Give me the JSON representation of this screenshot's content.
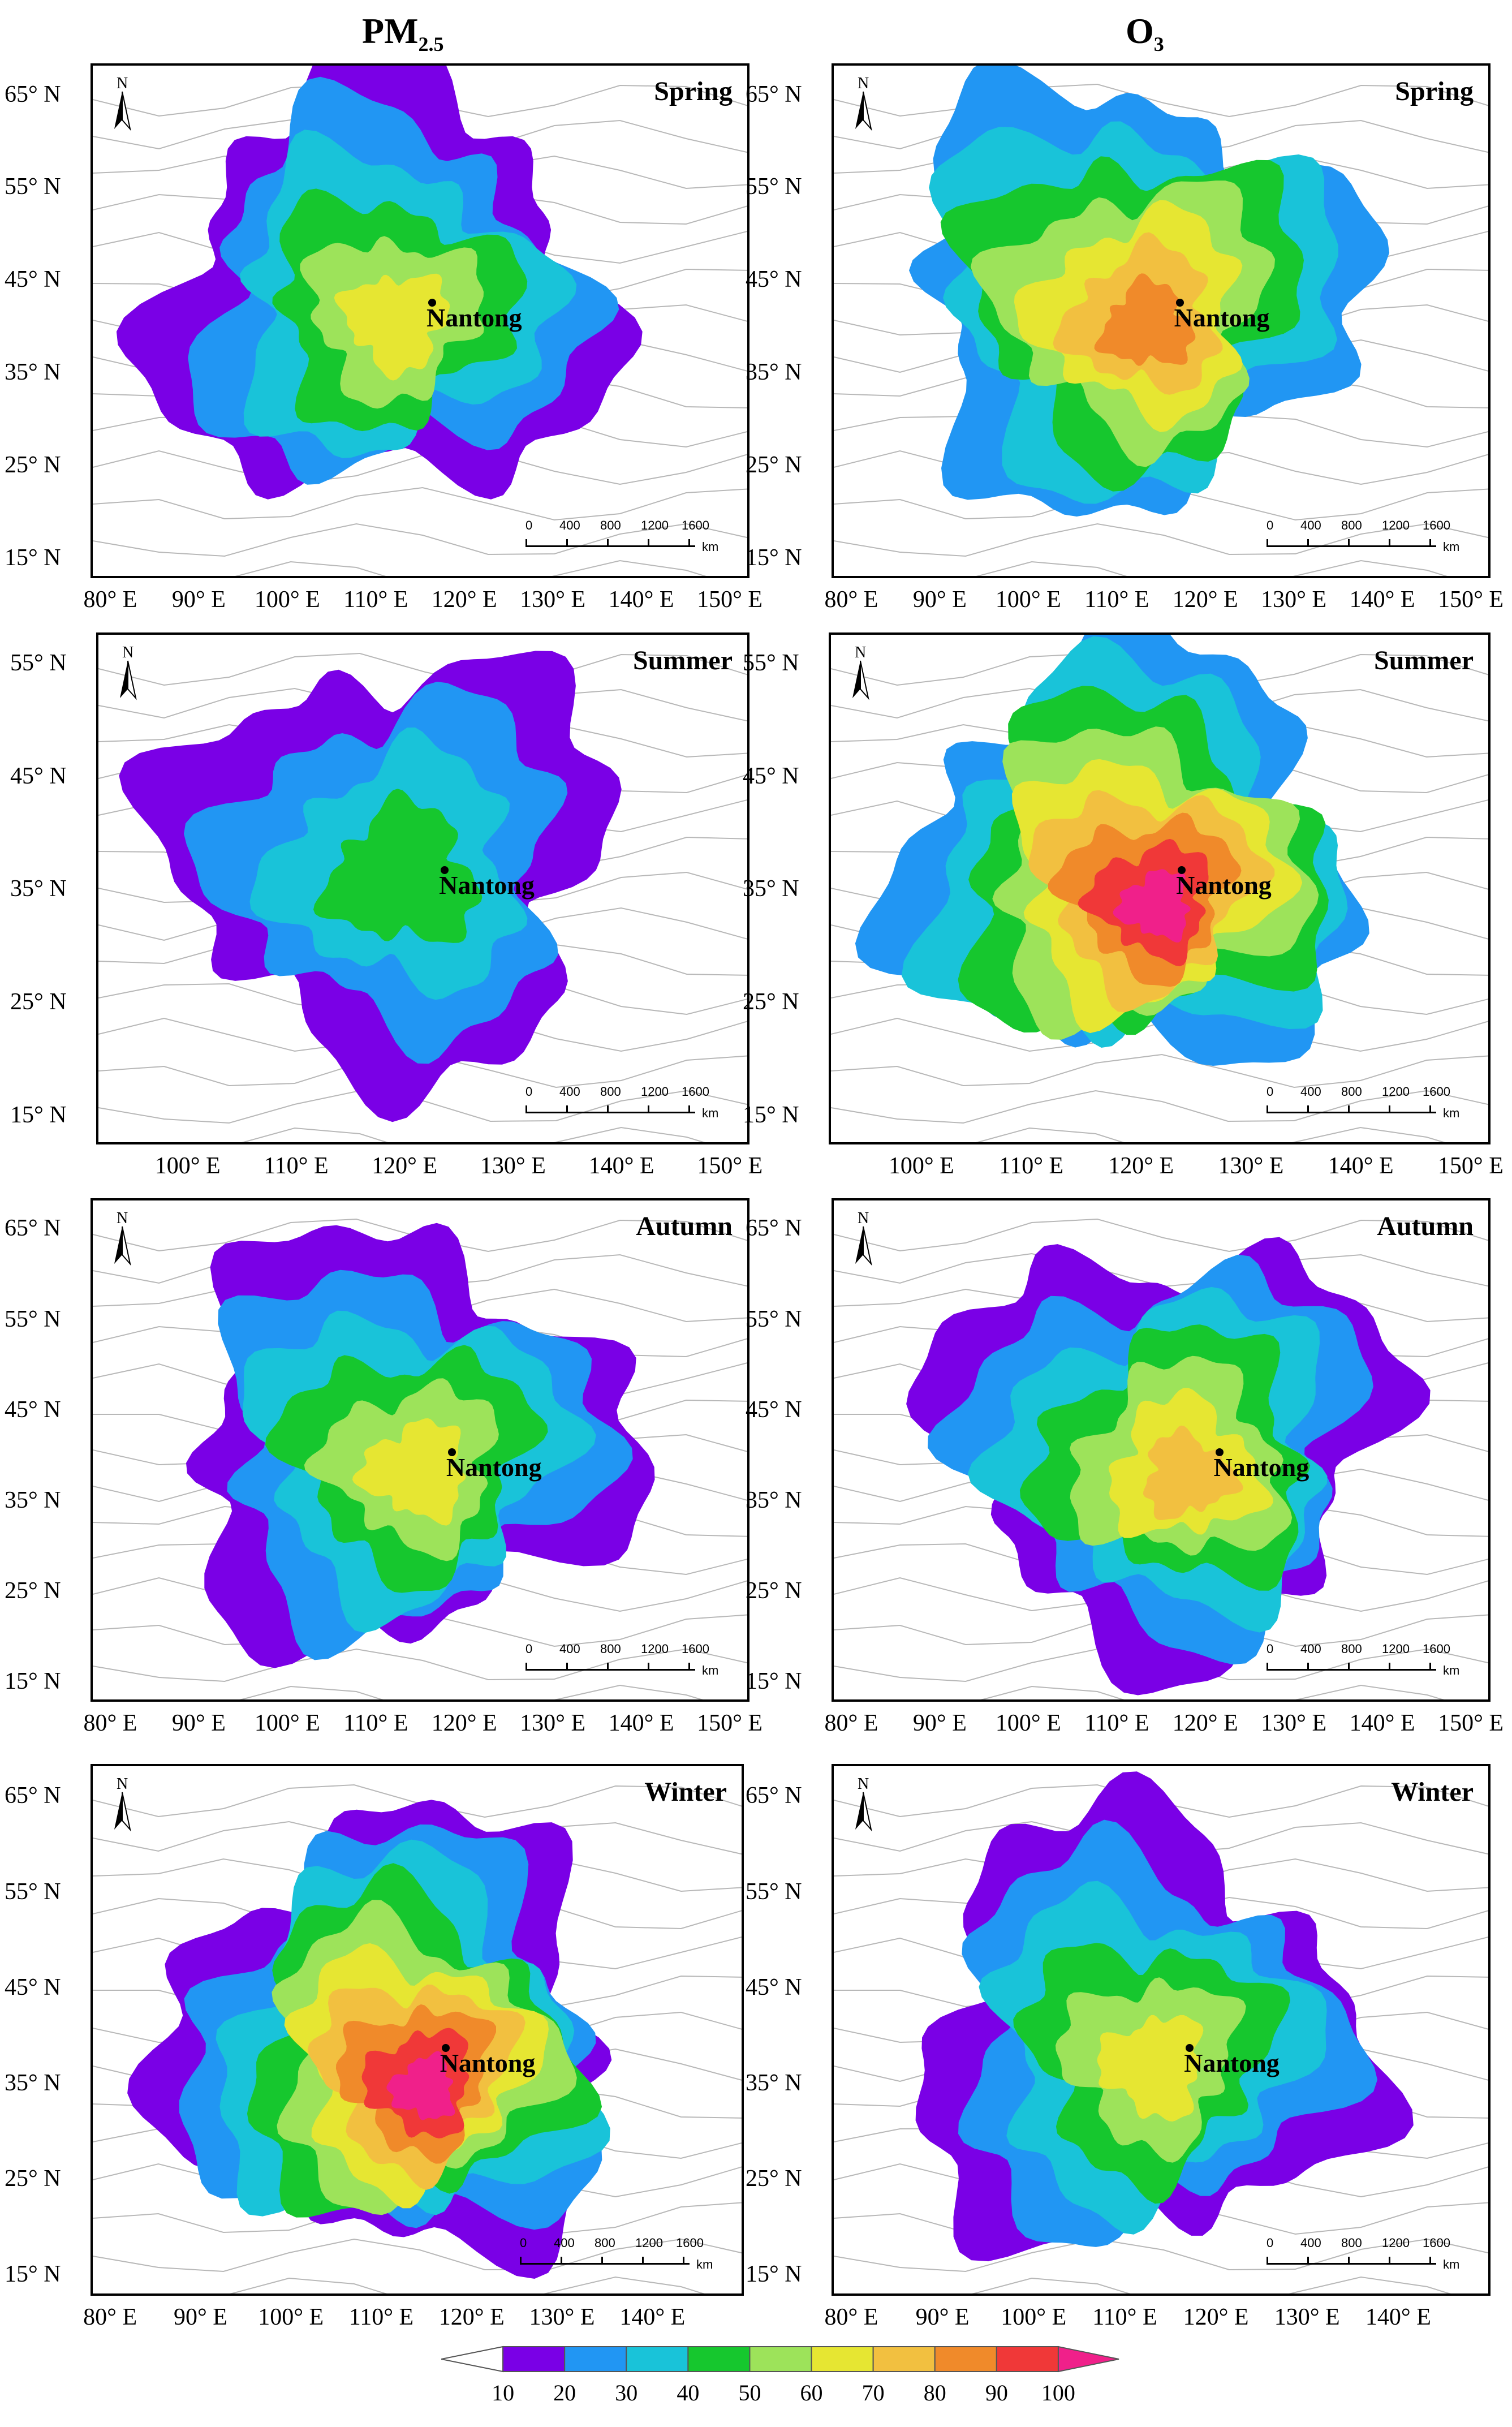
{
  "columns": [
    {
      "title_main": "PM",
      "title_sub": "2.5"
    },
    {
      "title_main": "O",
      "title_sub": "3"
    }
  ],
  "north_label": "N",
  "city": "Nantong",
  "scale_ticks": [
    "0",
    "400",
    "800",
    "1200",
    "1600"
  ],
  "scale_unit": "km",
  "panels": [
    {
      "season": "Spring",
      "pollutant": "PM2.5",
      "y_ticks": [
        "65° N",
        "55° N",
        "45° N",
        "35° N",
        "25° N",
        "15° N"
      ],
      "x_ticks": [
        "80° E",
        "90° E",
        "100° E",
        "110° E",
        "120° E",
        "130° E",
        "140° E",
        "150° E"
      ]
    },
    {
      "season": "Spring",
      "pollutant": "O3",
      "y_ticks": [
        "65° N",
        "55° N",
        "45° N",
        "35° N",
        "25° N",
        "15° N"
      ],
      "x_ticks": [
        "80° E",
        "90° E",
        "100° E",
        "110° E",
        "120° E",
        "130° E",
        "140° E",
        "150° E"
      ]
    },
    {
      "season": "Summer",
      "pollutant": "PM2.5",
      "y_ticks": [
        "55° N",
        "45° N",
        "35° N",
        "25° N",
        "15° N"
      ],
      "x_ticks": [
        "100° E",
        "110° E",
        "120° E",
        "130° E",
        "140° E",
        "150° E"
      ]
    },
    {
      "season": "Summer",
      "pollutant": "O3",
      "y_ticks": [
        "55° N",
        "45° N",
        "35° N",
        "25° N",
        "15° N"
      ],
      "x_ticks": [
        "100° E",
        "110° E",
        "120° E",
        "130° E",
        "140° E",
        "150° E"
      ]
    },
    {
      "season": "Autumn",
      "pollutant": "PM2.5",
      "y_ticks": [
        "65° N",
        "55° N",
        "45° N",
        "35° N",
        "25° N",
        "15° N"
      ],
      "x_ticks": [
        "80° E",
        "90° E",
        "100° E",
        "110° E",
        "120° E",
        "130° E",
        "140° E",
        "150° E"
      ]
    },
    {
      "season": "Autumn",
      "pollutant": "O3",
      "y_ticks": [
        "65° N",
        "55° N",
        "45° N",
        "35° N",
        "25° N",
        "15° N"
      ],
      "x_ticks": [
        "80° E",
        "90° E",
        "100° E",
        "110° E",
        "120° E",
        "130° E",
        "140° E",
        "150° E"
      ]
    },
    {
      "season": "Winter",
      "pollutant": "PM2.5",
      "y_ticks": [
        "65° N",
        "55° N",
        "45° N",
        "35° N",
        "25° N",
        "15° N"
      ],
      "x_ticks": [
        "80° E",
        "90° E",
        "100° E",
        "110° E",
        "120° E",
        "130° E",
        "140° E"
      ]
    },
    {
      "season": "Winter",
      "pollutant": "O3",
      "y_ticks": [
        "65° N",
        "55° N",
        "45° N",
        "35° N",
        "25° N",
        "15° N"
      ],
      "x_ticks": [
        "80° E",
        "90° E",
        "100° E",
        "110° E",
        "120° E",
        "130° E",
        "140° E"
      ]
    }
  ],
  "legend": {
    "labels": [
      "10",
      "20",
      "30",
      "40",
      "50",
      "60",
      "70",
      "80",
      "90",
      "100"
    ],
    "colors": [
      "#ffffff",
      "#7a00e6",
      "#2196f3",
      "#19c3d9",
      "#16c72e",
      "#9de35a",
      "#e6e632",
      "#f2c040",
      "#f08a2a",
      "#f03838",
      "#f0208a"
    ]
  }
}
